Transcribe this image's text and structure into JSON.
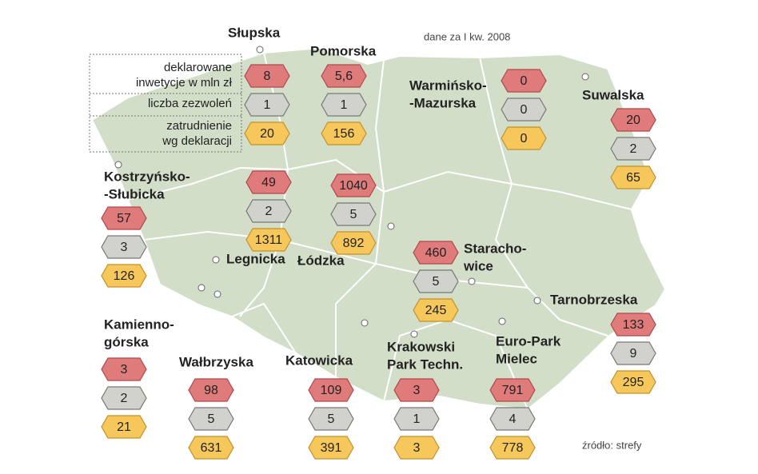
{
  "note_date": "dane za I kw. 2008",
  "source": "źródło: strefy",
  "legend": {
    "investment": [
      "deklarowane",
      "inwetycje w mln zł"
    ],
    "permits": [
      "liczba zezwoleń"
    ],
    "employment": [
      "zatrudnienie",
      "wg deklaracji"
    ]
  },
  "zones": [
    {
      "name": [
        "Słupska"
      ],
      "investment": 8,
      "permits": 1,
      "employment": 20
    },
    {
      "name": [
        "Pomorska"
      ],
      "investment": "5,6",
      "permits": 1,
      "employment": 156
    },
    {
      "name": [
        "Warmińsko-",
        "-Mazurska"
      ],
      "investment": 0,
      "permits": 0,
      "employment": 0
    },
    {
      "name": [
        "Suwalska"
      ],
      "investment": 20,
      "permits": 2,
      "employment": 65
    },
    {
      "name": [
        "Kostrzyńsko-",
        "-Słubicka"
      ],
      "investment": 57,
      "permits": 3,
      "employment": 126
    },
    {
      "name": [
        "Legnicka"
      ],
      "investment": 49,
      "permits": 2,
      "employment": 1311
    },
    {
      "name": [
        "Łódzka"
      ],
      "investment": 1040,
      "permits": 5,
      "employment": 892
    },
    {
      "name": [
        "Staracho-",
        "wice"
      ],
      "investment": 460,
      "permits": 5,
      "employment": 245
    },
    {
      "name": [
        "Tarnobrzeska"
      ],
      "investment": 133,
      "permits": 9,
      "employment": 295
    },
    {
      "name": [
        "Kamienno-",
        "górska"
      ],
      "investment": 3,
      "permits": 2,
      "employment": 21
    },
    {
      "name": [
        "Wałbrzyska"
      ],
      "investment": 98,
      "permits": 5,
      "employment": 631
    },
    {
      "name": [
        "Katowicka"
      ],
      "investment": 109,
      "permits": 5,
      "employment": 391
    },
    {
      "name": [
        "Krakowski",
        "Park Techn."
      ],
      "investment": 3,
      "permits": 1,
      "employment": 3
    },
    {
      "name": [
        "Euro-Park",
        "Mielec"
      ],
      "investment": 791,
      "permits": 4,
      "employment": 778
    }
  ]
}
